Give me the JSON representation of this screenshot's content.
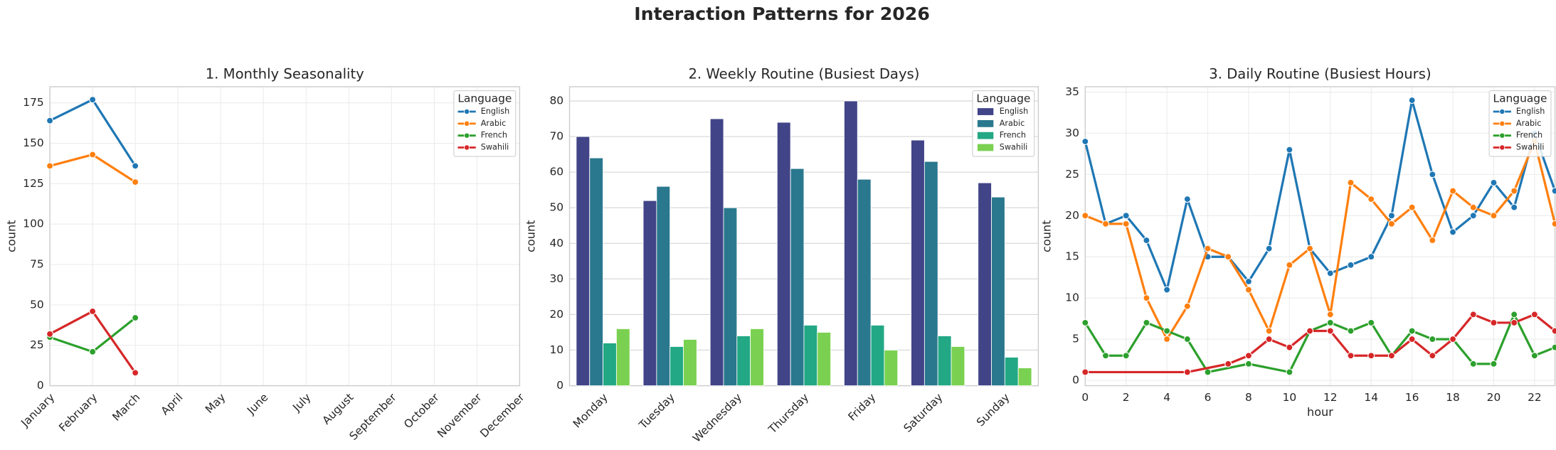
{
  "title": "Interaction Patterns for 2026",
  "chart_data": [
    {
      "type": "line",
      "title": "1. Monthly Seasonality",
      "ylabel": "count",
      "legend_title": "Language",
      "legend": "upper right",
      "grid": "both",
      "categories": [
        "January",
        "February",
        "March",
        "April",
        "May",
        "June",
        "July",
        "August",
        "September",
        "October",
        "November",
        "December"
      ],
      "ylim": [
        0,
        185
      ],
      "yticks": [
        0,
        25,
        50,
        75,
        100,
        125,
        150,
        175
      ],
      "series": [
        {
          "name": "English",
          "color": "#1f77b4",
          "values": [
            164,
            177,
            136,
            null,
            null,
            null,
            null,
            null,
            null,
            null,
            null,
            null
          ]
        },
        {
          "name": "Arabic",
          "color": "#ff7f0e",
          "values": [
            136,
            143,
            126,
            null,
            null,
            null,
            null,
            null,
            null,
            null,
            null,
            null
          ]
        },
        {
          "name": "French",
          "color": "#2ca02c",
          "values": [
            30,
            21,
            42,
            null,
            null,
            null,
            null,
            null,
            null,
            null,
            null,
            null
          ]
        },
        {
          "name": "Swahili",
          "color": "#d62728",
          "values": [
            32,
            46,
            8,
            null,
            null,
            null,
            null,
            null,
            null,
            null,
            null,
            null
          ]
        }
      ]
    },
    {
      "type": "bar",
      "title": "2. Weekly Routine (Busiest Days)",
      "ylabel": "count",
      "legend_title": "Language",
      "legend": "upper right",
      "grid": "y",
      "categories": [
        "Monday",
        "Tuesday",
        "Wednesday",
        "Thursday",
        "Friday",
        "Saturday",
        "Sunday"
      ],
      "ylim": [
        0,
        84
      ],
      "yticks": [
        0,
        10,
        20,
        30,
        40,
        50,
        60,
        70,
        80
      ],
      "series": [
        {
          "name": "English",
          "color": "#414487",
          "values": [
            70,
            52,
            75,
            74,
            80,
            69,
            57
          ]
        },
        {
          "name": "Arabic",
          "color": "#2a788e",
          "values": [
            64,
            56,
            50,
            61,
            58,
            63,
            53
          ]
        },
        {
          "name": "French",
          "color": "#22a884",
          "values": [
            12,
            11,
            14,
            17,
            17,
            14,
            8
          ]
        },
        {
          "name": "Swahili",
          "color": "#7ad151",
          "values": [
            16,
            13,
            16,
            15,
            10,
            11,
            5
          ]
        }
      ]
    },
    {
      "type": "line",
      "title": "3. Daily Routine (Busiest Hours)",
      "ylabel": "count",
      "xlabel": "hour",
      "legend_title": "Language",
      "legend": "upper right",
      "grid": "both",
      "xlim": [
        0,
        23
      ],
      "xticks": [
        0,
        2,
        4,
        6,
        8,
        10,
        12,
        14,
        16,
        18,
        20,
        22
      ],
      "ylim": [
        -0.65,
        35.65
      ],
      "yticks": [
        0,
        5,
        10,
        15,
        20,
        25,
        30,
        35
      ],
      "series": [
        {
          "name": "English",
          "color": "#1f77b4",
          "x": [
            0,
            1,
            2,
            3,
            4,
            5,
            6,
            7,
            8,
            9,
            10,
            11,
            12,
            13,
            14,
            15,
            16,
            17,
            18,
            19,
            20,
            21,
            22,
            23
          ],
          "values": [
            29,
            19,
            20,
            17,
            11,
            22,
            15,
            15,
            12,
            16,
            28,
            16,
            13,
            14,
            15,
            20,
            34,
            25,
            18,
            20,
            24,
            21,
            30,
            23
          ]
        },
        {
          "name": "Arabic",
          "color": "#ff7f0e",
          "x": [
            0,
            1,
            2,
            3,
            4,
            5,
            6,
            7,
            8,
            9,
            10,
            11,
            12,
            13,
            14,
            15,
            16,
            17,
            18,
            19,
            20,
            21,
            22,
            23
          ],
          "values": [
            20,
            19,
            19,
            10,
            5,
            9,
            16,
            15,
            11,
            6,
            14,
            16,
            8,
            24,
            22,
            19,
            21,
            17,
            23,
            21,
            20,
            23,
            29,
            19
          ]
        },
        {
          "name": "French",
          "color": "#2ca02c",
          "x": [
            0,
            1,
            2,
            3,
            4,
            5,
            6,
            8,
            10,
            11,
            12,
            13,
            14,
            15,
            16,
            17,
            18,
            19,
            20,
            21,
            22,
            23
          ],
          "values": [
            7,
            3,
            3,
            7,
            6,
            5,
            1,
            2,
            1,
            6,
            7,
            6,
            7,
            3,
            6,
            5,
            5,
            2,
            2,
            8,
            3,
            4
          ]
        },
        {
          "name": "Swahili",
          "color": "#d62728",
          "x": [
            0,
            5,
            7,
            8,
            9,
            10,
            11,
            12,
            13,
            14,
            15,
            16,
            17,
            18,
            19,
            20,
            21,
            22,
            23
          ],
          "values": [
            1,
            1,
            2,
            3,
            5,
            4,
            6,
            6,
            3,
            3,
            3,
            5,
            3,
            5,
            8,
            7,
            7,
            8,
            6
          ]
        }
      ]
    }
  ]
}
